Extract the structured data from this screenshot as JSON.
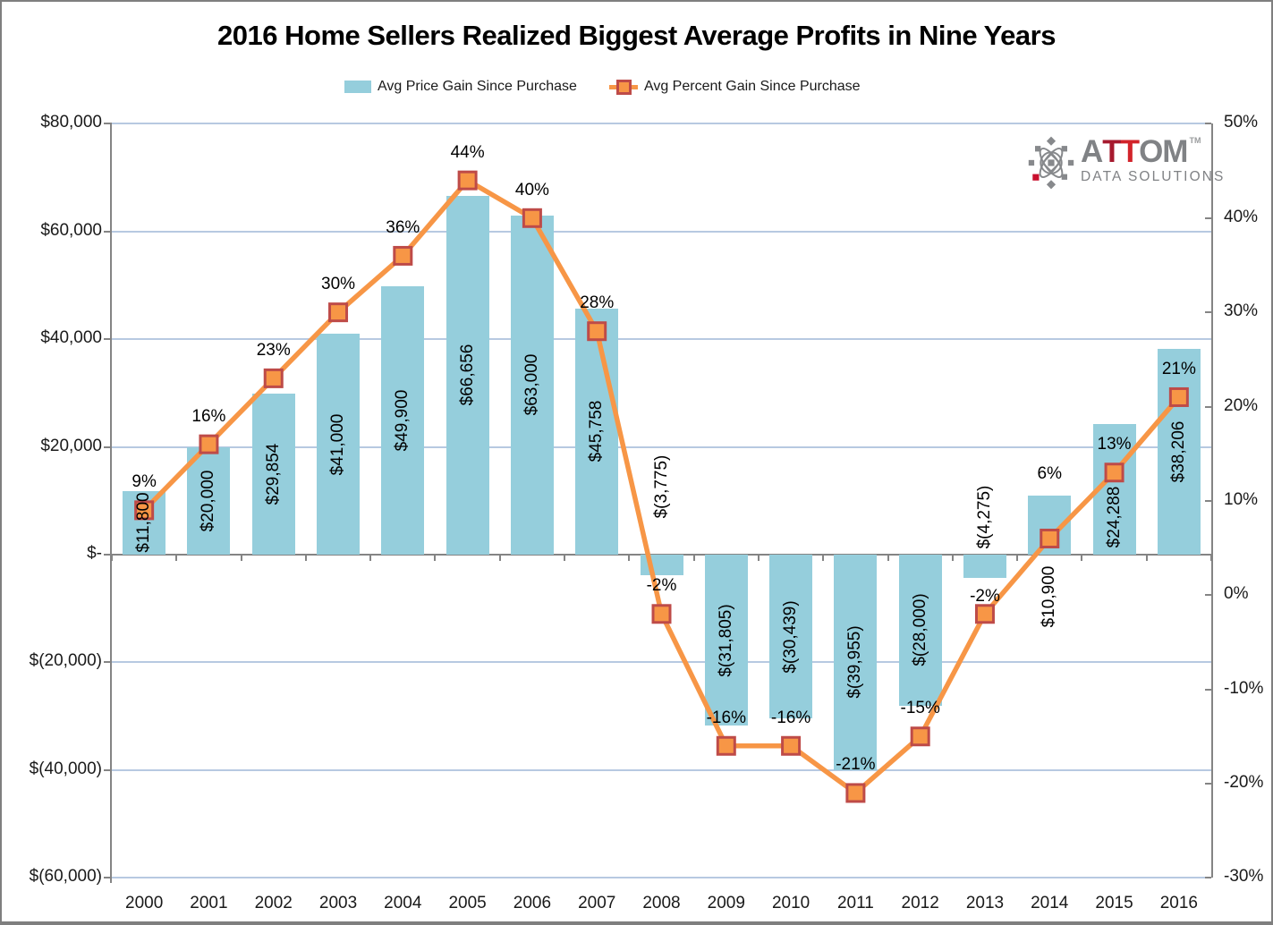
{
  "title": "2016 Home Sellers Realized Biggest Average Profits in Nine Years",
  "legend": {
    "items": [
      {
        "label": "Avg Price Gain Since Purchase",
        "type": "bar"
      },
      {
        "label": "Avg Percent Gain Since Purchase",
        "type": "line"
      }
    ]
  },
  "logo": {
    "letters": [
      "A",
      "T",
      "T",
      "O",
      "M"
    ],
    "tagline": "DATA SOLUTIONS",
    "trademark": "TM"
  },
  "colors": {
    "bar_fill": "#95CEDC",
    "line": "#F79646",
    "marker_fill": "#F79646",
    "marker_border": "#BE4B48",
    "gridline": "#B7C9E1",
    "axis": "#848484",
    "logo_gray": "#808285",
    "logo_red_dark": "#A6192E",
    "logo_red": "#D2232A"
  },
  "chart_data": {
    "type": "bar+line combo",
    "categories": [
      "2000",
      "2001",
      "2002",
      "2003",
      "2004",
      "2005",
      "2006",
      "2007",
      "2008",
      "2009",
      "2010",
      "2011",
      "2012",
      "2013",
      "2014",
      "2015",
      "2016"
    ],
    "series": [
      {
        "name": "Avg Price Gain Since Purchase",
        "type": "bar",
        "axis": "left",
        "values": [
          11800,
          20000,
          29854,
          41000,
          49900,
          66656,
          63000,
          45758,
          -3775,
          -31805,
          -30439,
          -39955,
          -28000,
          -4275,
          10900,
          24288,
          38206
        ],
        "labels": [
          "$11,800",
          "$20,000",
          "$29,854",
          "$41,000",
          "$49,900",
          "$66,656",
          "$63,000",
          "$45,758",
          "$(3,775)",
          "$(31,805)",
          "$(30,439)",
          "$(39,955)",
          "$(28,000)",
          "$(4,275)",
          "$10,900",
          "$24,288",
          "$38,206"
        ]
      },
      {
        "name": "Avg Percent Gain Since Purchase",
        "type": "line",
        "axis": "right",
        "values": [
          9,
          16,
          23,
          30,
          36,
          44,
          40,
          28,
          -2,
          -16,
          -16,
          -21,
          -15,
          -2,
          6,
          13,
          21
        ],
        "labels": [
          "9%",
          "16%",
          "23%",
          "30%",
          "36%",
          "44%",
          "40%",
          "28%",
          "-2%",
          "-16%",
          "-16%",
          "-21%",
          "-15%",
          "-2%",
          "6%",
          "13%",
          "21%"
        ]
      }
    ],
    "left_axis": {
      "title": "",
      "tick_labels": [
        "$80,000",
        "$60,000",
        "$40,000",
        "$20,000",
        "$-",
        "$(20,000)",
        "$(40,000)",
        "$(60,000)"
      ],
      "tick_values": [
        80000,
        60000,
        40000,
        20000,
        0,
        -20000,
        -40000,
        -60000
      ],
      "range": [
        -60000,
        80000
      ]
    },
    "right_axis": {
      "title": "",
      "tick_labels": [
        "50%",
        "40%",
        "30%",
        "20%",
        "10%",
        "0%",
        "-10%",
        "-20%",
        "-30%"
      ],
      "tick_values": [
        50,
        40,
        30,
        20,
        10,
        0,
        -10,
        -20,
        -30
      ],
      "range": [
        -30,
        50
      ]
    },
    "grid": "horizontal gridlines on",
    "legend_position": "top"
  }
}
